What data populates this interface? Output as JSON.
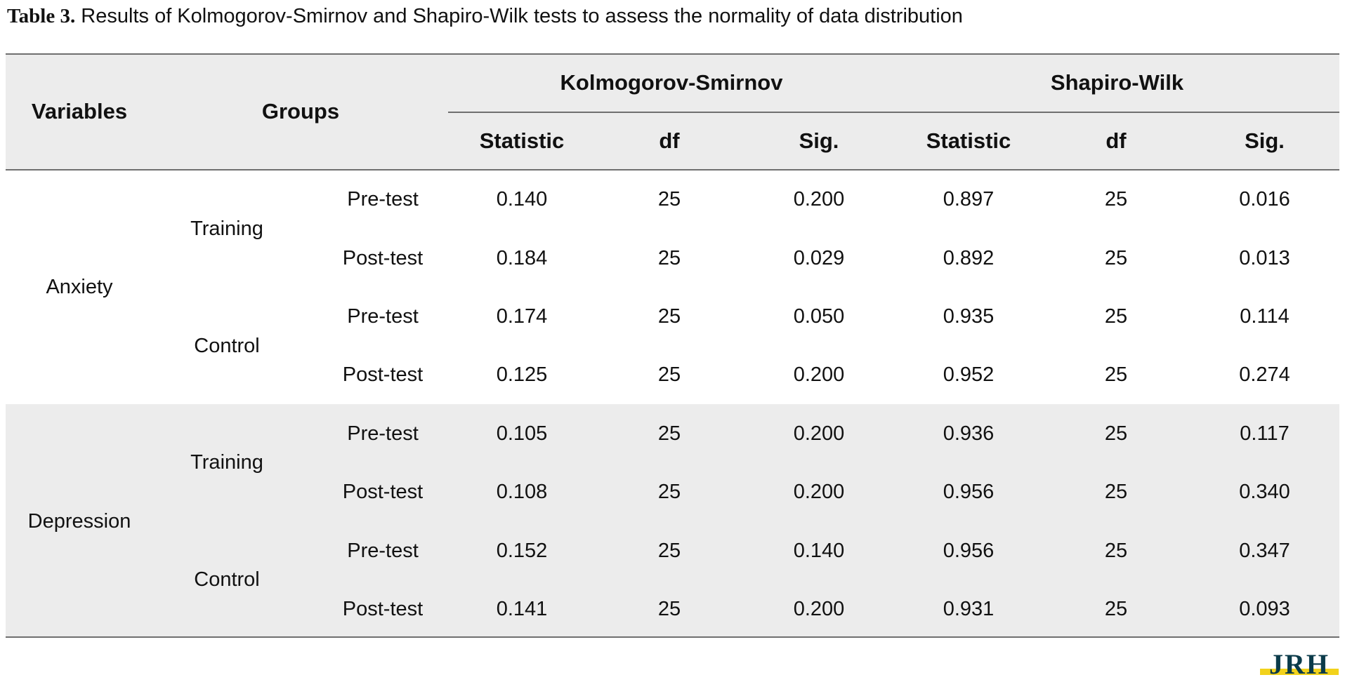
{
  "caption": {
    "label": "Table 3.",
    "text": " Results of Kolmogorov-Smirnov and Shapiro-Wilk tests to assess the normality of data distribution"
  },
  "header": {
    "variables": "Variables",
    "groups": "Groups",
    "ks": "Kolmogorov-Smirnov",
    "sw": "Shapiro-Wilk",
    "statistic": "Statistic",
    "df": "df",
    "sig": "Sig."
  },
  "variables": [
    {
      "name": "Anxiety",
      "groups": [
        {
          "name": "Training",
          "rows": [
            {
              "test": "Pre-test",
              "ks_stat": "0.140",
              "ks_df": "25",
              "ks_sig": "0.200",
              "sw_stat": "0.897",
              "sw_df": "25",
              "sw_sig": "0.016"
            },
            {
              "test": "Post-test",
              "ks_stat": "0.184",
              "ks_df": "25",
              "ks_sig": "0.029",
              "sw_stat": "0.892",
              "sw_df": "25",
              "sw_sig": "0.013"
            }
          ]
        },
        {
          "name": "Control",
          "rows": [
            {
              "test": "Pre-test",
              "ks_stat": "0.174",
              "ks_df": "25",
              "ks_sig": "0.050",
              "sw_stat": "0.935",
              "sw_df": "25",
              "sw_sig": "0.114"
            },
            {
              "test": "Post-test",
              "ks_stat": "0.125",
              "ks_df": "25",
              "ks_sig": "0.200",
              "sw_stat": "0.952",
              "sw_df": "25",
              "sw_sig": "0.274"
            }
          ]
        }
      ]
    },
    {
      "name": "Depression",
      "groups": [
        {
          "name": "Training",
          "rows": [
            {
              "test": "Pre-test",
              "ks_stat": "0.105",
              "ks_df": "25",
              "ks_sig": "0.200",
              "sw_stat": "0.936",
              "sw_df": "25",
              "sw_sig": "0.117"
            },
            {
              "test": "Post-test",
              "ks_stat": "0.108",
              "ks_df": "25",
              "ks_sig": "0.200",
              "sw_stat": "0.956",
              "sw_df": "25",
              "sw_sig": "0.340"
            }
          ]
        },
        {
          "name": "Control",
          "rows": [
            {
              "test": "Pre-test",
              "ks_stat": "0.152",
              "ks_df": "25",
              "ks_sig": "0.140",
              "sw_stat": "0.956",
              "sw_df": "25",
              "sw_sig": "0.347"
            },
            {
              "test": "Post-test",
              "ks_stat": "0.141",
              "ks_df": "25",
              "ks_sig": "0.200",
              "sw_stat": "0.931",
              "sw_df": "25",
              "sw_sig": "0.093"
            }
          ]
        }
      ]
    }
  ],
  "logo": {
    "text": "JRH",
    "colors": {
      "letters": "#0b3b4a",
      "accent": "#f2d21b"
    }
  },
  "colors": {
    "shade": "#ececec",
    "rule": "#6f6f6f",
    "text": "#111111"
  }
}
